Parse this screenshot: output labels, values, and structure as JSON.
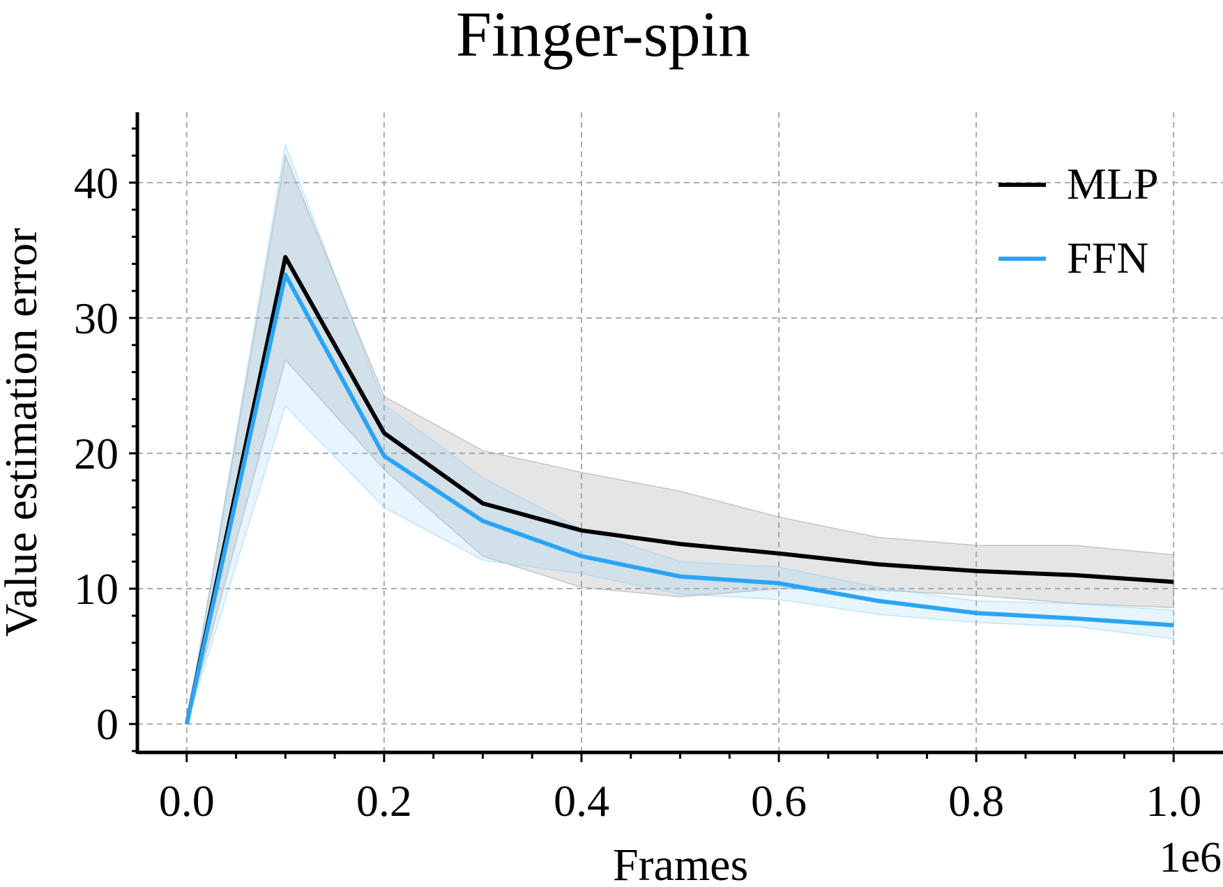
{
  "chart_data": {
    "type": "line",
    "title": "Finger-spin",
    "xlabel": "Frames",
    "ylabel": "Value estimation error",
    "x_offset_text": "1e6",
    "xlim": [
      -0.05,
      1.05
    ],
    "ylim": [
      -2.1,
      45.2
    ],
    "xticks": [
      0.0,
      0.2,
      0.4,
      0.6,
      0.8,
      1.0
    ],
    "xtick_labels": [
      "0.0",
      "0.2",
      "0.4",
      "0.6",
      "0.8",
      "1.0"
    ],
    "yticks": [
      0,
      10,
      20,
      30,
      40
    ],
    "ytick_labels": [
      "0",
      "10",
      "20",
      "30",
      "40"
    ],
    "grid": true,
    "legend_position": "top-right",
    "x": [
      0.0,
      0.1,
      0.2,
      0.3,
      0.4,
      0.5,
      0.6,
      0.7,
      0.8,
      0.9,
      1.0
    ],
    "series": [
      {
        "name": "MLP",
        "color": "#000000",
        "band_color": "#999999",
        "values": [
          0.0,
          34.5,
          21.5,
          16.3,
          14.3,
          13.3,
          12.6,
          11.8,
          11.3,
          11.0,
          10.5
        ],
        "lower": [
          0.0,
          26.9,
          18.8,
          12.4,
          10.1,
          9.4,
          10.0,
          9.9,
          9.5,
          8.9,
          8.6
        ],
        "upper": [
          0.0,
          42.0,
          24.2,
          20.2,
          18.6,
          17.2,
          15.3,
          13.8,
          13.2,
          13.2,
          12.5
        ]
      },
      {
        "name": "FFN",
        "color": "#2aa4f4",
        "band_color": "#8fd0fb",
        "values": [
          0.0,
          33.2,
          19.8,
          15.0,
          12.4,
          10.9,
          10.4,
          9.1,
          8.2,
          7.8,
          7.3
        ],
        "lower": [
          0.0,
          23.5,
          16.0,
          12.1,
          11.1,
          9.6,
          9.2,
          8.1,
          7.5,
          7.2,
          6.3
        ],
        "upper": [
          0.0,
          42.8,
          23.6,
          18.2,
          14.4,
          12.0,
          11.6,
          10.1,
          9.1,
          8.9,
          8.4
        ]
      }
    ]
  }
}
